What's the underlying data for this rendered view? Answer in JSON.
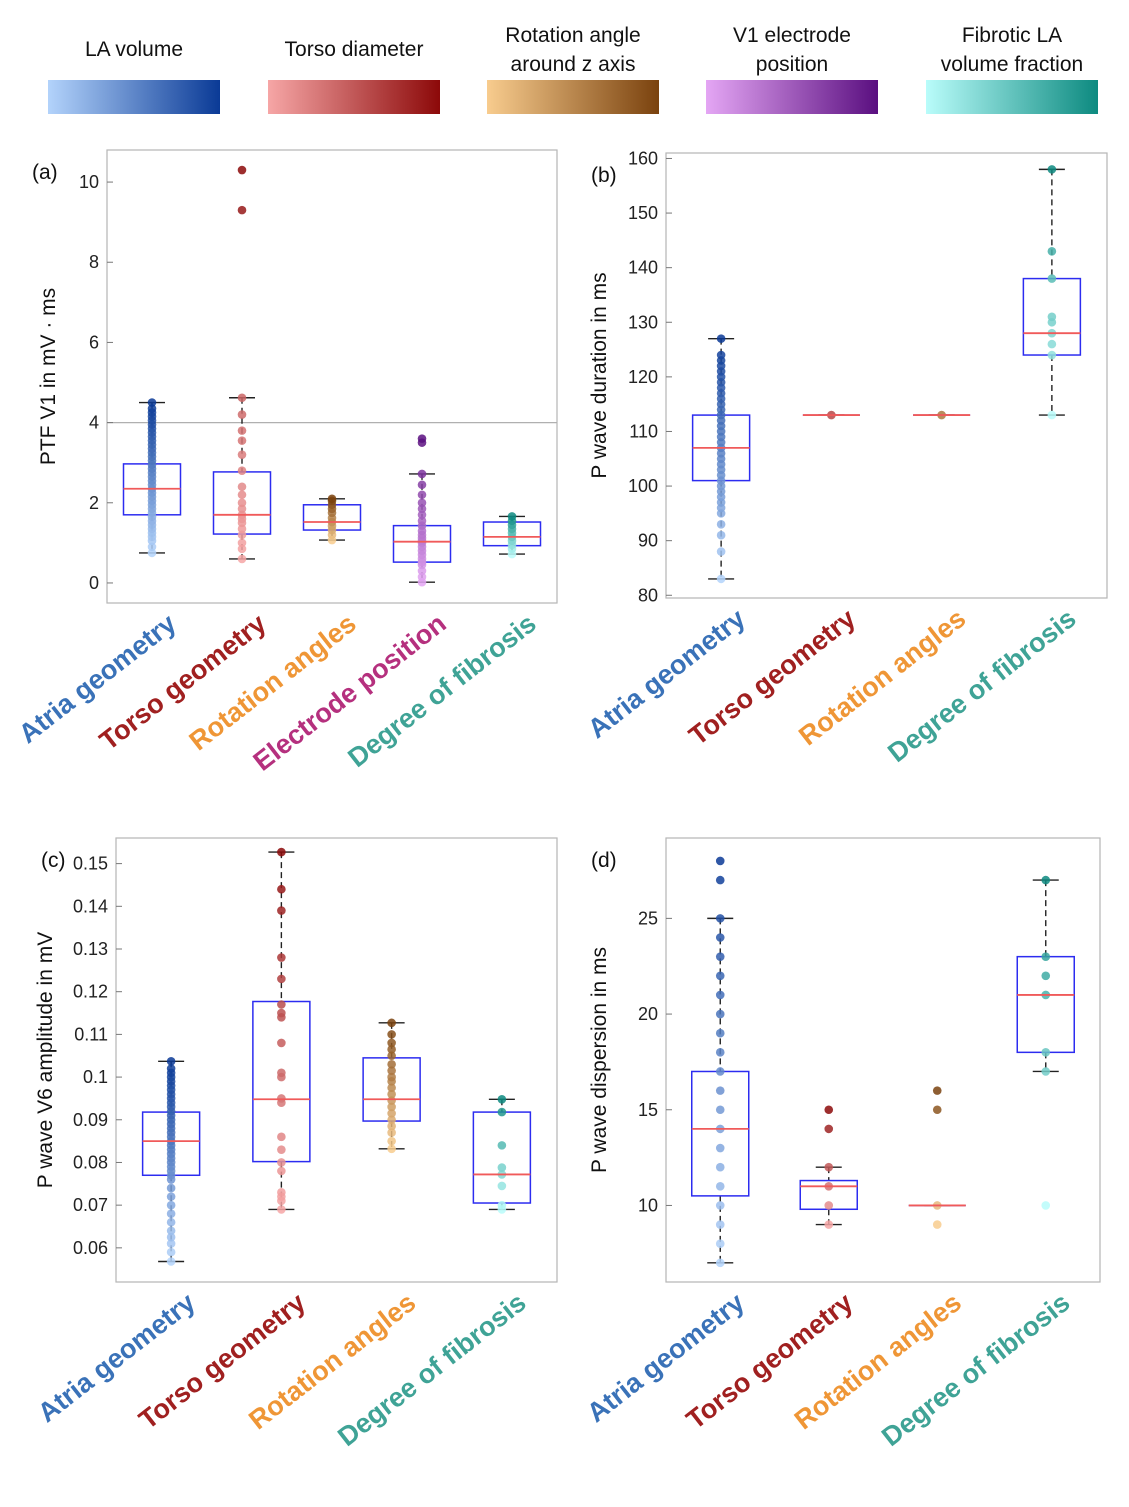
{
  "legend": [
    {
      "title_lines": [
        "LA volume"
      ],
      "from": "#b3d3fb",
      "to": "#0a3a96"
    },
    {
      "title_lines": [
        "Torso diameter"
      ],
      "from": "#f6a6a6",
      "to": "#8c0909"
    },
    {
      "title_lines": [
        "Rotation angle",
        "around z axis"
      ],
      "from": "#f8cc8e",
      "to": "#7a420e"
    },
    {
      "title_lines": [
        "V1 electrode",
        "position"
      ],
      "from": "#e4a6f4",
      "to": "#5a0f80"
    },
    {
      "title_lines": [
        "Fibrotic LA",
        "volume fraction"
      ],
      "from": "#b9fcfa",
      "to": "#0d8a80"
    }
  ],
  "category_colors": {
    "Atria geometry": "#3a72b8",
    "Torso geometry": "#a02020",
    "Rotation angles": "#ef9636",
    "Electrode position": "#b5307e",
    "Degree of fibrosis": "#3fa396"
  },
  "box_color": "#2c2cf0",
  "median_color": "#f05a5a",
  "chart_data": [
    {
      "type": "box",
      "panel_label": "(a)",
      "ylabel": "PTF V1 in mV · ms",
      "ylim": [
        -0.5,
        10.8
      ],
      "yticks": [
        0,
        2,
        4,
        6,
        8,
        10
      ],
      "reference_line": 4,
      "categories": [
        "Atria geometry",
        "Torso geometry",
        "Rotation angles",
        "Electrode position",
        "Degree of fibrosis"
      ],
      "boxes": [
        {
          "q1": 1.7,
          "median": 2.35,
          "q3": 2.97,
          "whisker_low": 0.75,
          "whisker_high": 4.5,
          "points": [
            0.75,
            0.9,
            1.05,
            1.15,
            1.25,
            1.35,
            1.45,
            1.55,
            1.65,
            1.75,
            1.85,
            1.95,
            2.05,
            2.15,
            2.25,
            2.35,
            2.45,
            2.55,
            2.65,
            2.75,
            2.85,
            2.95,
            3.05,
            3.15,
            3.25,
            3.35,
            3.45,
            3.55,
            3.65,
            3.75,
            3.85,
            3.95,
            4.05,
            4.15,
            4.25,
            4.35,
            4.5
          ]
        },
        {
          "q1": 1.22,
          "median": 1.7,
          "q3": 2.77,
          "whisker_low": 0.6,
          "whisker_high": 4.62,
          "points": [
            0.6,
            0.85,
            1.0,
            1.2,
            1.35,
            1.5,
            1.6,
            1.7,
            1.85,
            2.0,
            2.2,
            2.4,
            2.8,
            3.2,
            3.55,
            3.8,
            4.2,
            4.62,
            9.3,
            10.3
          ]
        },
        {
          "q1": 1.32,
          "median": 1.52,
          "q3": 1.95,
          "whisker_low": 1.07,
          "whisker_high": 2.1,
          "points": [
            1.07,
            1.2,
            1.32,
            1.42,
            1.52,
            1.62,
            1.75,
            1.85,
            1.95,
            2.05,
            2.1
          ]
        },
        {
          "q1": 0.52,
          "median": 1.03,
          "q3": 1.43,
          "whisker_low": 0.02,
          "whisker_high": 2.72,
          "points": [
            0.02,
            0.15,
            0.3,
            0.45,
            0.52,
            0.6,
            0.7,
            0.8,
            0.9,
            1.0,
            1.05,
            1.12,
            1.2,
            1.3,
            1.43,
            1.55,
            1.7,
            1.85,
            2.0,
            2.2,
            2.45,
            2.72,
            3.5,
            3.6
          ]
        },
        {
          "q1": 0.93,
          "median": 1.15,
          "q3": 1.52,
          "whisker_low": 0.72,
          "whisker_high": 1.66,
          "points": [
            0.72,
            0.85,
            0.95,
            1.05,
            1.15,
            1.25,
            1.35,
            1.45,
            1.55,
            1.66
          ]
        }
      ]
    },
    {
      "type": "box",
      "panel_label": "(b)",
      "ylabel": "P wave duration in ms",
      "ylim": [
        79.5,
        161
      ],
      "yticks": [
        80,
        90,
        100,
        110,
        120,
        130,
        140,
        150,
        160
      ],
      "categories": [
        "Atria geometry",
        "Torso geometry",
        "Rotation angles",
        "Degree of fibrosis"
      ],
      "boxes": [
        {
          "q1": 101,
          "median": 107,
          "q3": 113,
          "whisker_low": 83,
          "whisker_high": 127,
          "points": [
            83,
            88,
            91,
            93,
            95,
            96,
            97,
            98,
            99,
            100,
            101,
            102,
            103,
            104,
            105,
            106,
            107,
            108,
            109,
            110,
            111,
            112,
            113,
            114,
            115,
            116,
            117,
            118,
            119,
            120,
            121,
            122,
            123,
            124,
            127
          ]
        },
        {
          "q1": 113,
          "median": 113,
          "q3": 113,
          "whisker_low": 113,
          "whisker_high": 113,
          "points": [
            113
          ]
        },
        {
          "q1": 113,
          "median": 113,
          "q3": 113,
          "whisker_low": 113,
          "whisker_high": 113,
          "points": [
            113
          ]
        },
        {
          "q1": 124,
          "median": 128,
          "q3": 138,
          "whisker_low": 113,
          "whisker_high": 158,
          "points": [
            113,
            124,
            126,
            128,
            130,
            131,
            138,
            143,
            158
          ]
        }
      ]
    },
    {
      "type": "box",
      "panel_label": "(c)",
      "ylabel": "P wave V6 amplitude in mV",
      "ylim": [
        0.052,
        0.156
      ],
      "yticks": [
        0.06,
        0.07,
        0.08,
        0.09,
        0.1,
        0.11,
        0.12,
        0.13,
        0.14,
        0.15
      ],
      "categories": [
        "Atria geometry",
        "Torso geometry",
        "Rotation angles",
        "Degree of fibrosis"
      ],
      "boxes": [
        {
          "q1": 0.077,
          "median": 0.085,
          "q3": 0.0918,
          "whisker_low": 0.0568,
          "whisker_high": 0.1037,
          "points": [
            0.0568,
            0.059,
            0.061,
            0.0625,
            0.064,
            0.066,
            0.068,
            0.07,
            0.072,
            0.074,
            0.076,
            0.077,
            0.078,
            0.079,
            0.08,
            0.081,
            0.082,
            0.083,
            0.084,
            0.085,
            0.086,
            0.087,
            0.088,
            0.089,
            0.09,
            0.091,
            0.092,
            0.093,
            0.094,
            0.095,
            0.096,
            0.097,
            0.098,
            0.099,
            0.1,
            0.101,
            0.102,
            0.1037
          ]
        },
        {
          "q1": 0.0802,
          "median": 0.0948,
          "q3": 0.1177,
          "whisker_low": 0.069,
          "whisker_high": 0.1527,
          "points": [
            0.069,
            0.071,
            0.072,
            0.073,
            0.078,
            0.08,
            0.083,
            0.086,
            0.094,
            0.095,
            0.1,
            0.101,
            0.108,
            0.114,
            0.115,
            0.117,
            0.123,
            0.128,
            0.139,
            0.144,
            0.1527
          ]
        },
        {
          "q1": 0.0897,
          "median": 0.0948,
          "q3": 0.1045,
          "whisker_low": 0.0832,
          "whisker_high": 0.1127,
          "points": [
            0.0832,
            0.085,
            0.087,
            0.0885,
            0.09,
            0.0915,
            0.093,
            0.0945,
            0.096,
            0.0975,
            0.099,
            0.1,
            0.1015,
            0.103,
            0.105,
            0.1065,
            0.108,
            0.11,
            0.1127
          ]
        },
        {
          "q1": 0.0705,
          "median": 0.0772,
          "q3": 0.0918,
          "whisker_low": 0.069,
          "whisker_high": 0.0948,
          "points": [
            0.069,
            0.07,
            0.0745,
            0.0772,
            0.0788,
            0.084,
            0.0918,
            0.0948
          ]
        }
      ]
    },
    {
      "type": "box",
      "panel_label": "(d)",
      "ylabel": "P wave dispersion in ms",
      "ylim": [
        6,
        29.2
      ],
      "yticks": [
        10,
        15,
        20,
        25
      ],
      "categories": [
        "Atria geometry",
        "Torso geometry",
        "Rotation angles",
        "Degree of fibrosis"
      ],
      "boxes": [
        {
          "q1": 10.5,
          "median": 14,
          "q3": 17,
          "whisker_low": 7,
          "whisker_high": 25,
          "points": [
            7,
            8,
            9,
            10,
            11,
            12,
            13,
            14,
            15,
            16,
            17,
            18,
            19,
            20,
            21,
            22,
            23,
            24,
            25,
            27,
            28
          ]
        },
        {
          "q1": 9.8,
          "median": 11,
          "q3": 11.3,
          "whisker_low": 9,
          "whisker_high": 12,
          "points": [
            9,
            10,
            11,
            12,
            14,
            15
          ]
        },
        {
          "q1": 10,
          "median": 10,
          "q3": 10,
          "whisker_low": 10,
          "whisker_high": 10,
          "points": [
            9,
            10,
            15,
            16
          ]
        },
        {
          "q1": 18,
          "median": 21,
          "q3": 23,
          "whisker_low": 17,
          "whisker_high": 27,
          "points": [
            10,
            17,
            18,
            21,
            22,
            23,
            27
          ]
        }
      ]
    }
  ]
}
